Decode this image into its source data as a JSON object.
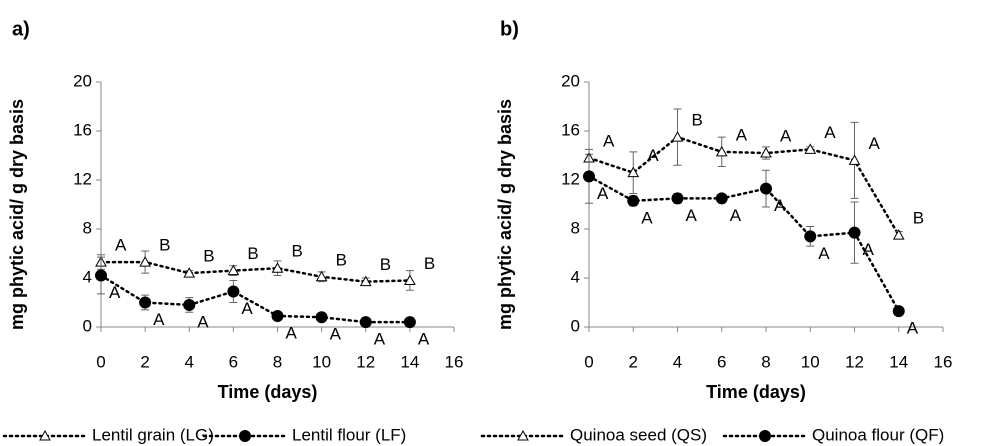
{
  "chart_data": [
    {
      "type": "line",
      "title": "a)",
      "xlabel": "Time (days)",
      "ylabel": "mg phytic acid/ g dry basis",
      "x": [
        0,
        2,
        4,
        6,
        8,
        10,
        12,
        14
      ],
      "xlim": [
        0,
        16
      ],
      "xticks": [
        0,
        2,
        4,
        6,
        8,
        10,
        12,
        14,
        16
      ],
      "ylim": [
        0,
        20
      ],
      "yticks": [
        0,
        4,
        8,
        12,
        16,
        20
      ],
      "series": [
        {
          "name": "Lentil grain (LG)",
          "color": "#000000",
          "marker": "triangle",
          "values": [
            5.3,
            5.3,
            4.4,
            4.6,
            4.8,
            4.1,
            3.7,
            3.8
          ],
          "errors": [
            0.6,
            0.9,
            0.2,
            0.4,
            0.6,
            0.4,
            0.3,
            0.8
          ],
          "letters": [
            "A",
            "B",
            "B",
            "B",
            "B",
            "B",
            "B",
            "B"
          ]
        },
        {
          "name": "Lentil flour (LF)",
          "color": "#000000",
          "marker": "circle",
          "values": [
            4.2,
            2.0,
            1.8,
            2.9,
            0.9,
            0.8,
            0.4,
            0.4
          ],
          "errors": [
            1.5,
            0.6,
            0.6,
            0.9,
            0.1,
            0.2,
            0.2,
            0.1
          ],
          "letters": [
            "A",
            "A",
            "A",
            "A",
            "A",
            "A",
            "A",
            "A"
          ]
        }
      ]
    },
    {
      "type": "line",
      "title": "b)",
      "xlabel": "Time (days)",
      "ylabel": "mg phytic acid/ g dry basis",
      "x": [
        0,
        2,
        4,
        6,
        8,
        10,
        12,
        14
      ],
      "xlim": [
        0,
        16
      ],
      "xticks": [
        0,
        2,
        4,
        6,
        8,
        10,
        12,
        14,
        16
      ],
      "ylim": [
        0,
        20
      ],
      "yticks": [
        0,
        4,
        8,
        12,
        16,
        20
      ],
      "series": [
        {
          "name": "Quinoa seed (QS)",
          "color": "#000000",
          "marker": "triangle",
          "values": [
            13.8,
            12.6,
            15.5,
            14.3,
            14.2,
            14.5,
            13.6,
            7.5
          ],
          "errors": [
            0.3,
            1.7,
            2.3,
            1.2,
            0.5,
            0.2,
            3.1,
            0.3
          ],
          "letters": [
            "A",
            "A",
            "B",
            "A",
            "A",
            "A",
            "A",
            "B"
          ]
        },
        {
          "name": "Quinoa flour (QF)",
          "color": "#000000",
          "marker": "circle",
          "values": [
            12.3,
            10.3,
            10.5,
            10.5,
            11.3,
            7.4,
            7.7,
            1.3
          ],
          "errors": [
            2.2,
            0.4,
            0.4,
            0.3,
            1.5,
            0.8,
            2.5,
            0.1
          ],
          "letters": [
            "A",
            "A",
            "A",
            "A",
            "A",
            "A",
            "A",
            "A"
          ]
        }
      ]
    }
  ]
}
